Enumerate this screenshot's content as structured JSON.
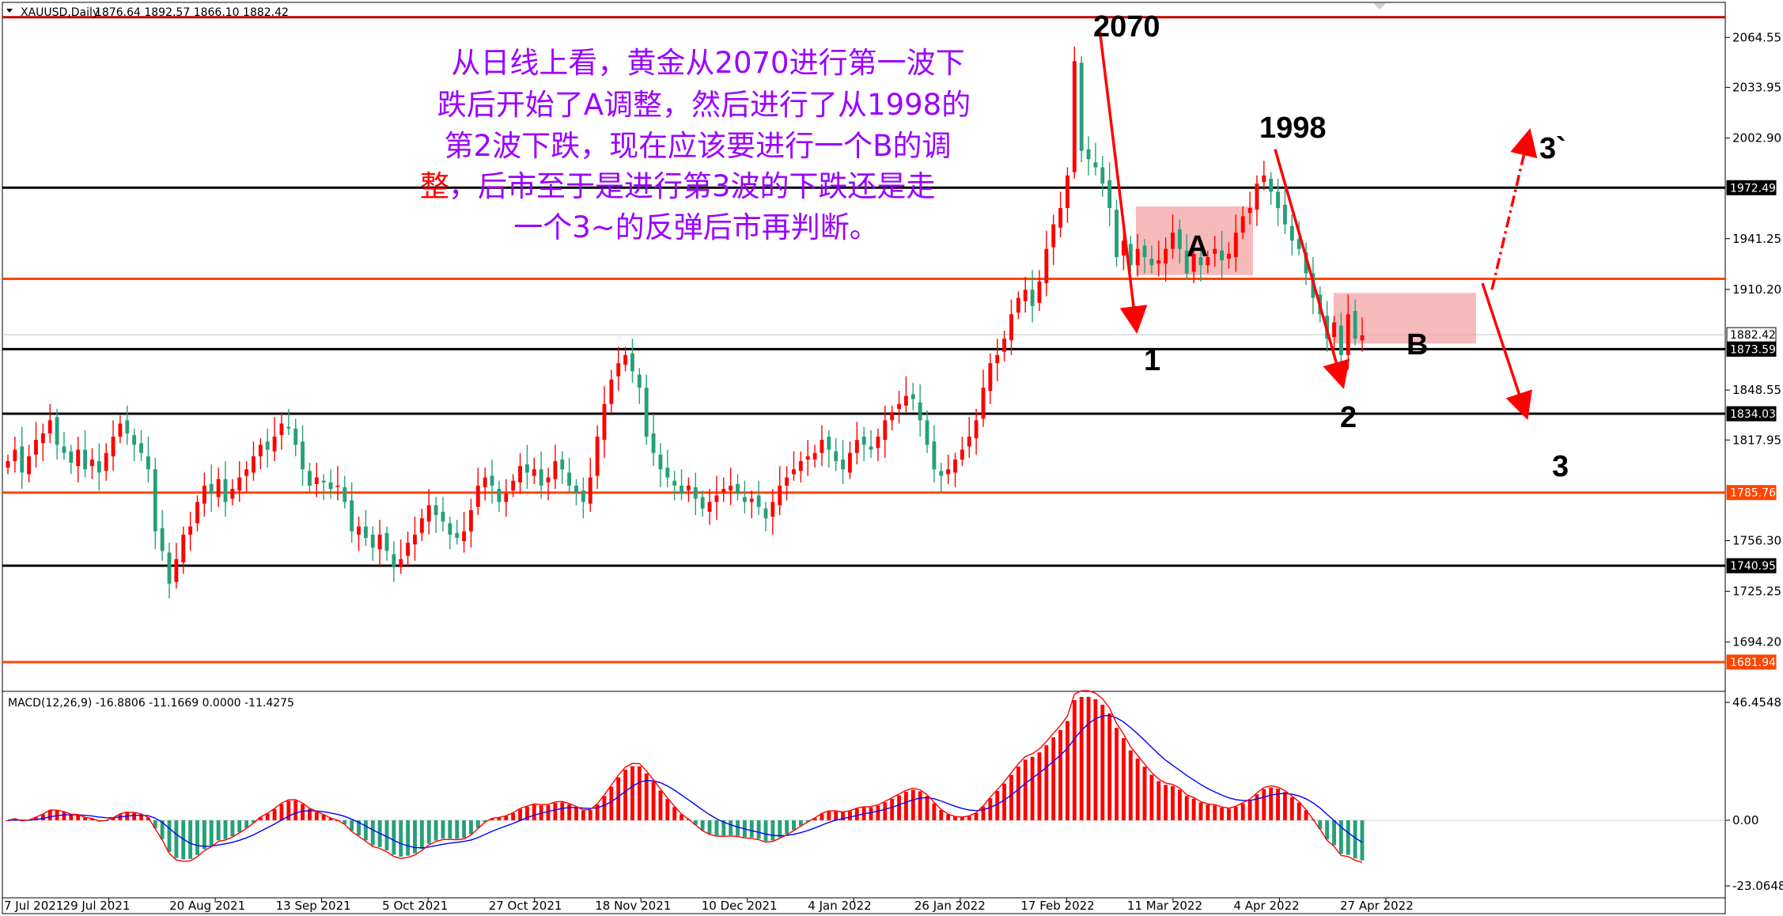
{
  "header": {
    "symbol_caption": "XAUUSD,Daily",
    "ohlc_caption": "1876.64 1892.57 1866.10 1882.42"
  },
  "macd_caption": "MACD(12,26,9) -16.8806 -11.1669 0.0000 -11.4275",
  "annotation": {
    "line1": "从日线上看，黄金从2070进行第一波下",
    "line2": "跌后开始了A调整，然后进行了从1998的",
    "line3": "第2波下跌，现在应该要进行一个B的调",
    "line4_red": "整",
    "line4_rest": "，后市至于是进行第3波的下跌还是走",
    "line5": "一个3~的反弹后市再判断。"
  },
  "wave_labels": {
    "peak": "2070",
    "peak2": "1998",
    "w1": "1",
    "wA": "A",
    "w2": "2",
    "wB": "B",
    "w3": "3",
    "w3alt": "3`"
  },
  "colors": {
    "bull": "#ff0000",
    "bear": "#26a07a",
    "support_black": "#000000",
    "support_orange": "#ff4500",
    "support_darkred": "#c00000",
    "zone_fill": "#f4a3a3",
    "macd_signal": "#ff0000",
    "macd_line": "#0000ff",
    "arrow": "#ff0000"
  },
  "chart_data": {
    "type": "candlestick",
    "symbol": "XAUUSD",
    "timeframe": "Daily",
    "price_axis_ticks": [
      "2064.55",
      "2033.95",
      "2002.90",
      "1972.49",
      "1941.25",
      "1910.20",
      "1882.42",
      "1873.59",
      "1848.55",
      "1834.03",
      "1817.95",
      "1785.76",
      "1756.30",
      "1740.95",
      "1725.25",
      "1694.20",
      "1681.94"
    ],
    "price_ylim": [
      1664,
      2086
    ],
    "date_labels": [
      "7 Jul 2021",
      "29 Jul 2021",
      "20 Aug 2021",
      "13 Sep 2021",
      "5 Oct 2021",
      "27 Oct 2021",
      "18 Nov 2021",
      "10 Dec 2021",
      "4 Jan 2022",
      "26 Jan 2022",
      "17 Feb 2022",
      "11 Mar 2022",
      "4 Apr 2022",
      "27 Apr 2022"
    ],
    "horizontal_levels": [
      {
        "price": 2076.89,
        "label": "2076.89",
        "color": "#c00000"
      },
      {
        "price": 1972.49,
        "label": "1972.49",
        "color": "#000000"
      },
      {
        "price": 1916.66,
        "label": "1916.66",
        "color": "#ff4500"
      },
      {
        "price": 1882.42,
        "label": "1882.42",
        "color": "#c0c0c0"
      },
      {
        "price": 1873.59,
        "label": "1873.59",
        "color": "#000000"
      },
      {
        "price": 1834.03,
        "label": "1834.03",
        "color": "#000000"
      },
      {
        "price": 1785.76,
        "label": "1785.76",
        "color": "#ff4500"
      },
      {
        "price": 1740.95,
        "label": "1740.95",
        "color": "#000000"
      },
      {
        "price": 1681.94,
        "label": "1681.94",
        "color": "#ff4500"
      }
    ],
    "closes": [
      1805,
      1812,
      1798,
      1808,
      1818,
      1822,
      1830,
      1815,
      1810,
      1804,
      1812,
      1800,
      1806,
      1798,
      1810,
      1820,
      1828,
      1822,
      1815,
      1810,
      1800,
      1762,
      1750,
      1730,
      1745,
      1760,
      1765,
      1780,
      1790,
      1785,
      1794,
      1780,
      1788,
      1795,
      1800,
      1808,
      1815,
      1812,
      1820,
      1828,
      1825,
      1815,
      1800,
      1790,
      1795,
      1792,
      1788,
      1790,
      1780,
      1762,
      1765,
      1758,
      1752,
      1760,
      1750,
      1740,
      1745,
      1755,
      1760,
      1770,
      1778,
      1772,
      1768,
      1760,
      1758,
      1762,
      1775,
      1790,
      1795,
      1790,
      1780,
      1785,
      1793,
      1802,
      1798,
      1800,
      1790,
      1795,
      1805,
      1800,
      1790,
      1785,
      1780,
      1795,
      1820,
      1840,
      1855,
      1865,
      1870,
      1860,
      1850,
      1820,
      1810,
      1800,
      1795,
      1790,
      1785,
      1790,
      1782,
      1776,
      1780,
      1784,
      1788,
      1790,
      1785,
      1780,
      1782,
      1777,
      1770,
      1780,
      1790,
      1795,
      1800,
      1805,
      1808,
      1810,
      1818,
      1812,
      1805,
      1800,
      1810,
      1818,
      1815,
      1812,
      1820,
      1830,
      1835,
      1840,
      1845,
      1843,
      1830,
      1815,
      1800,
      1796,
      1800,
      1806,
      1812,
      1820,
      1830,
      1850,
      1865,
      1870,
      1880,
      1895,
      1905,
      1910,
      1900,
      1915,
      1935,
      1950,
      1960,
      1980,
      2050,
      1995,
      1990,
      1985,
      1975,
      1960,
      1930,
      1940,
      1925,
      1935,
      1930,
      1925,
      1928,
      1935,
      1945,
      1935,
      1920,
      1932,
      1925,
      1930,
      1935,
      1928,
      1932,
      1945,
      1955,
      1960,
      1975,
      1980,
      1970,
      1960,
      1950,
      1940,
      1935,
      1920,
      1905,
      1895,
      1880,
      1890,
      1870,
      1895,
      1880,
      1882
    ],
    "macd_ylim": [
      -23.0648,
      46.4548
    ],
    "macd_ticks": [
      "46.4548",
      "0.00",
      "-23.0648"
    ],
    "current_macd": {
      "main": -16.8806,
      "signal": -11.1669,
      "histogram": -11.4275
    },
    "annotation_points": {
      "peak_2070": 2070,
      "peak_1998": 1998
    }
  }
}
